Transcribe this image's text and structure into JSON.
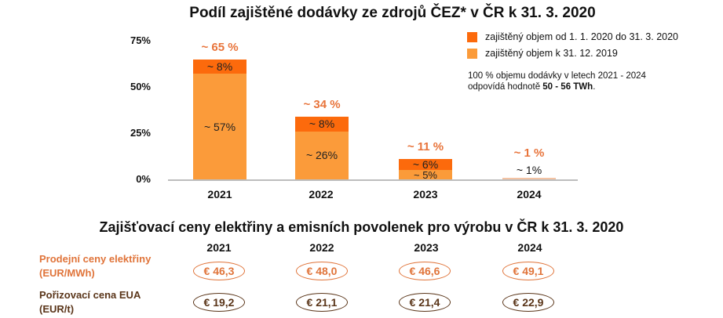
{
  "chart_data": {
    "type": "bar",
    "stacked": true,
    "title": "Podíl zajištěné dodávky ze zdrojů ČEZ* v ČR k 31. 3. 2020",
    "categories": [
      "2021",
      "2022",
      "2023",
      "2024"
    ],
    "series": [
      {
        "name": "zajištěný objem k 31. 12. 2019",
        "color": "#fb9b3a",
        "values": [
          57,
          26,
          5,
          1
        ],
        "labels": [
          "~ 57%",
          "~ 26%",
          "~ 5%",
          "~ 1%"
        ]
      },
      {
        "name": "zajištěný objem od 1. 1. 2020 do 31. 3. 2020",
        "color": "#fc6a0c",
        "values": [
          8,
          8,
          6,
          0
        ],
        "labels": [
          "~ 8%",
          "~ 8%",
          "~ 6%",
          ""
        ]
      }
    ],
    "totals": [
      65,
      34,
      11,
      1
    ],
    "total_labels": [
      "~ 65 %",
      "~ 34 %",
      "~ 11 %",
      "~ 1 %"
    ],
    "xlabel": "",
    "ylabel": "",
    "yticks": [
      "0%",
      "25%",
      "50%",
      "75%"
    ],
    "ylim": [
      0,
      75
    ],
    "grid": false,
    "legend_position": "top-right"
  },
  "legend": {
    "items": [
      {
        "label": "zajištěný objem od 1. 1. 2020 do 31. 3. 2020",
        "color": "#fc6a0c"
      },
      {
        "label": "zajištěný objem k 31. 12. 2019",
        "color": "#fb9b3a"
      }
    ]
  },
  "note": {
    "line1": "100 % objemu dodávky v letech 2021 - 2024",
    "line2_prefix": "odpovídá hodnotě ",
    "line2_bold": "50 - 56 TWh",
    "line2_suffix": "."
  },
  "prices": {
    "title": "Zajišťovací ceny elektřiny a emisních povolenek pro výrobu v ČR k 31. 3. 2020",
    "years": [
      "2021",
      "2022",
      "2023",
      "2024"
    ],
    "rows": [
      {
        "label_line1": "Prodejní ceny elektřiny",
        "label_line2": "(EUR/MWh)",
        "color": "#e0743a",
        "values": [
          "€ 46,3",
          "€ 48,0",
          "€ 46,6",
          "€ 49,1"
        ]
      },
      {
        "label_line1": "Pořizovací cena EUA",
        "label_line2": "(EUR/t)",
        "color": "#5a3519",
        "values": [
          "€ 19,2",
          "€ 21,1",
          "€ 21,4",
          "€ 22,9"
        ]
      }
    ]
  }
}
